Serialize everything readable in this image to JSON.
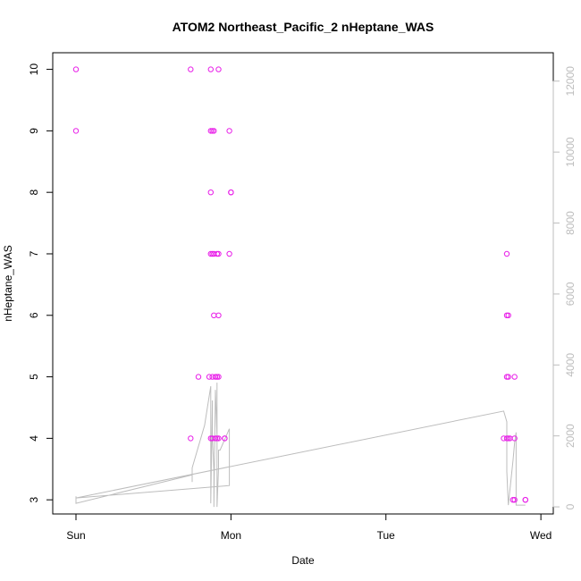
{
  "chart_data": {
    "type": "scatter",
    "title": "ATOM2 Northeast_Pacific_2 nHeptane_WAS",
    "xlabel": "Date",
    "ylabel": "nHeptane_WAS",
    "x_ticks": [
      {
        "value": 0,
        "label": "Sun"
      },
      {
        "value": 1,
        "label": "Mon"
      },
      {
        "value": 2,
        "label": "Tue"
      },
      {
        "value": 3,
        "label": "Wed"
      }
    ],
    "xlim": [
      -0.15,
      3.08
    ],
    "ylim": [
      2.77,
      10.27
    ],
    "y_ticks": [
      3,
      4,
      5,
      6,
      7,
      8,
      9,
      10
    ],
    "y2lim": [
      -200,
      12800
    ],
    "y2_ticks": [
      0,
      2000,
      4000,
      6000,
      8000,
      10000,
      12000
    ],
    "colors": {
      "points": "#e81ee8",
      "line": "#bdbdbd",
      "axis": "#000000",
      "axis_right": "#bdbdbd"
    },
    "series": [
      {
        "marker": "circle-open",
        "points": [
          [
            0.0,
            10
          ],
          [
            0.0,
            9
          ],
          [
            0.74,
            10
          ],
          [
            0.74,
            4
          ],
          [
            0.79,
            5
          ],
          [
            0.86,
            5
          ],
          [
            0.87,
            4
          ],
          [
            0.87,
            9
          ],
          [
            0.87,
            8
          ],
          [
            0.87,
            7
          ],
          [
            0.87,
            10
          ],
          [
            0.88,
            9
          ],
          [
            0.88,
            7
          ],
          [
            0.88,
            5
          ],
          [
            0.88,
            4
          ],
          [
            0.89,
            7
          ],
          [
            0.89,
            9
          ],
          [
            0.89,
            6
          ],
          [
            0.9,
            5
          ],
          [
            0.9,
            4
          ],
          [
            0.91,
            4
          ],
          [
            0.91,
            5
          ],
          [
            0.91,
            7
          ],
          [
            0.92,
            4
          ],
          [
            0.92,
            5
          ],
          [
            0.92,
            7
          ],
          [
            0.92,
            6
          ],
          [
            0.92,
            10
          ],
          [
            0.96,
            4
          ],
          [
            0.96,
            4
          ],
          [
            0.99,
            9
          ],
          [
            0.99,
            7
          ],
          [
            1.0,
            8
          ],
          [
            1.0,
            8
          ],
          [
            2.76,
            4
          ],
          [
            2.78,
            7
          ],
          [
            2.78,
            6
          ],
          [
            2.78,
            5
          ],
          [
            2.78,
            4
          ],
          [
            2.79,
            6
          ],
          [
            2.79,
            5
          ],
          [
            2.79,
            4
          ],
          [
            2.8,
            4
          ],
          [
            2.82,
            3
          ],
          [
            2.83,
            5
          ],
          [
            2.83,
            4
          ],
          [
            2.83,
            3
          ],
          [
            2.9,
            3
          ],
          [
            2.9,
            3
          ]
        ]
      },
      {
        "axis": "right",
        "line": [
          [
            0.0,
            300
          ],
          [
            0.0,
            100
          ],
          [
            0.75,
            900
          ],
          [
            0.75,
            700
          ],
          [
            0.75,
            1100
          ],
          [
            0.83,
            2300
          ],
          [
            0.87,
            3400
          ],
          [
            0.87,
            100
          ],
          [
            0.88,
            3000
          ],
          [
            0.88,
            2000
          ],
          [
            0.89,
            1000
          ],
          [
            0.89,
            0
          ],
          [
            0.9,
            3300
          ],
          [
            0.91,
            2000
          ],
          [
            0.91,
            3500
          ],
          [
            0.91,
            0
          ],
          [
            0.92,
            1100
          ],
          [
            0.92,
            1600
          ],
          [
            0.93,
            1600
          ],
          [
            0.99,
            2200
          ],
          [
            0.99,
            600
          ],
          [
            0.0,
            250
          ],
          [
            2.76,
            2700
          ],
          [
            2.78,
            2400
          ],
          [
            2.78,
            1000
          ],
          [
            2.79,
            50
          ],
          [
            2.82,
            1300
          ],
          [
            2.83,
            1800
          ],
          [
            2.84,
            2100
          ],
          [
            2.84,
            50
          ],
          [
            2.9,
            50
          ]
        ]
      }
    ]
  }
}
